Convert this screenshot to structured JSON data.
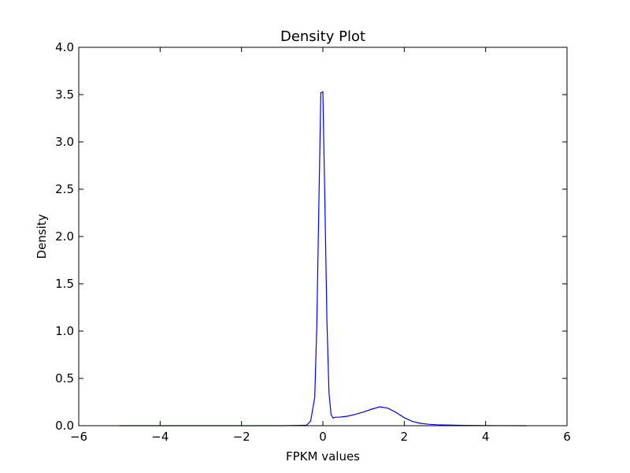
{
  "chart_data": {
    "type": "line",
    "title": "Density Plot",
    "xlabel": "FPKM values",
    "ylabel": "Density",
    "xlim": [
      -6,
      6
    ],
    "ylim": [
      0,
      4.0
    ],
    "xticks": [
      -6,
      -4,
      -2,
      0,
      2,
      4,
      6
    ],
    "xtick_labels": [
      "−6",
      "−4",
      "−2",
      "0",
      "2",
      "4",
      "6"
    ],
    "yticks": [
      0,
      0.5,
      1.0,
      1.5,
      2.0,
      2.5,
      3.0,
      3.5,
      4.0
    ],
    "ytick_labels": [
      "0.0",
      "0.5",
      "1.0",
      "1.5",
      "2.0",
      "2.5",
      "3.0",
      "3.5",
      "4.0"
    ],
    "grid": false,
    "line_color": "#0000ff",
    "series": [
      {
        "x": [
          -5.0,
          -1.0,
          -0.4,
          -0.3,
          -0.2,
          -0.15,
          -0.1,
          -0.05,
          0.0,
          0.05,
          0.1,
          0.15,
          0.2,
          0.25,
          0.3,
          0.4,
          0.5,
          0.6,
          0.8,
          1.0,
          1.2,
          1.4,
          1.6,
          1.8,
          2.0,
          2.2,
          2.4,
          2.6,
          2.8,
          3.0,
          3.5,
          4.0,
          5.0
        ],
        "y": [
          0.0,
          0.0,
          0.005,
          0.05,
          0.3,
          1.05,
          2.3,
          3.52,
          3.53,
          2.35,
          1.1,
          0.35,
          0.12,
          0.08,
          0.09,
          0.09,
          0.095,
          0.1,
          0.12,
          0.145,
          0.175,
          0.2,
          0.185,
          0.14,
          0.085,
          0.045,
          0.025,
          0.015,
          0.01,
          0.007,
          0.003,
          0.001,
          0.0
        ]
      }
    ]
  }
}
